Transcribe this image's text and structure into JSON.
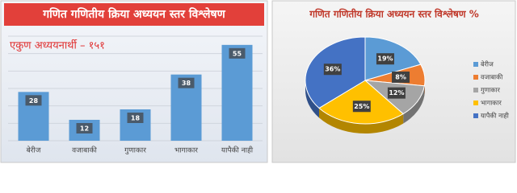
{
  "chart_data": [
    {
      "type": "bar",
      "title": "गणित गणितीय क्रिया अध्ययन स्तर विश्लेषण",
      "subtitle": "एकुण अध्ययनार्थी – १५१",
      "categories": [
        "बेरीज",
        "वजाबाकी",
        "गुणाकार",
        "भागाकार",
        "यापैकी नाही"
      ],
      "values": [
        28,
        12,
        18,
        38,
        55
      ],
      "color": "#5b9bd5",
      "ylim": [
        0,
        60
      ],
      "yticks": [
        0,
        10,
        20,
        30,
        40,
        50,
        60
      ],
      "grid": true,
      "tick_labels": false
    },
    {
      "type": "pie",
      "title": "गणित गणितीय क्रिया  अध्ययन स्तर विश्लेषण %",
      "categories": [
        "बेरीज",
        "वजाबाकी",
        "गुणाकार",
        "भागाकार",
        "यापैकी नाही"
      ],
      "values": [
        19,
        8,
        12,
        25,
        36
      ],
      "value_labels": [
        "19%",
        "8%",
        "12%",
        "25%",
        "36%"
      ],
      "colors": [
        "#5b9bd5",
        "#ed7d31",
        "#a5a5a5",
        "#ffc000",
        "#4472c4"
      ],
      "legend": "right"
    }
  ]
}
